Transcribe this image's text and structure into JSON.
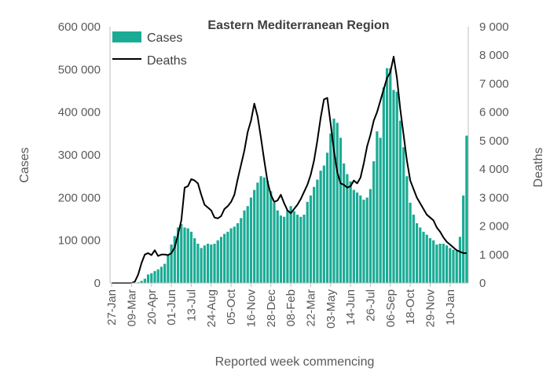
{
  "chart_data": {
    "type": "bar",
    "title": "Eastern Mediterranean Region",
    "xlabel": "Reported week commencing",
    "ylabel": "Cases",
    "y2label": "Deaths",
    "ylim": [
      0,
      600000
    ],
    "y2lim": [
      0,
      9000
    ],
    "yticks": [
      "0",
      "100 000",
      "200 000",
      "300 000",
      "400 000",
      "500 000",
      "600 000"
    ],
    "y2ticks": [
      "0",
      "1 000",
      "2 000",
      "3 000",
      "4 000",
      "5 000",
      "6 000",
      "7 000",
      "8 000",
      "9 000"
    ],
    "xtick_labels": [
      "27-Jan",
      "09-Mar",
      "20-Apr",
      "01-Jun",
      "13-Jul",
      "24-Aug",
      "05-Oct",
      "16-Nov",
      "28-Dec",
      "08-Feb",
      "22-Mar",
      "03-May",
      "14-Jun",
      "26-Jul",
      "06-Sep",
      "18-Oct",
      "29-Nov",
      "10-Jan"
    ],
    "legend": {
      "position": "top-left",
      "cases_label": "Cases",
      "deaths_label": "Deaths"
    },
    "colors": {
      "cases": "#1aab95",
      "deaths": "#000000",
      "axis": "#bfbfbf"
    },
    "series": [
      {
        "name": "Cases",
        "axis": "left",
        "type": "bar",
        "values": [
          0,
          0,
          0,
          0,
          0,
          0,
          0,
          500,
          2000,
          5000,
          10000,
          20000,
          23000,
          28000,
          32000,
          38000,
          45000,
          65000,
          90000,
          110000,
          130000,
          138000,
          130000,
          128000,
          120000,
          105000,
          92000,
          82000,
          88000,
          92000,
          90000,
          92000,
          100000,
          108000,
          115000,
          120000,
          128000,
          132000,
          140000,
          152000,
          170000,
          180000,
          200000,
          218000,
          235000,
          250000,
          247000,
          240000,
          215000,
          188000,
          170000,
          158000,
          155000,
          170000,
          180000,
          168000,
          160000,
          155000,
          160000,
          190000,
          205000,
          225000,
          242000,
          263000,
          275000,
          305000,
          350000,
          385000,
          375000,
          340000,
          280000,
          255000,
          238000,
          218000,
          212000,
          205000,
          195000,
          200000,
          220000,
          285000,
          355000,
          340000,
          458000,
          503000,
          503000,
          452000,
          448000,
          380000,
          318000,
          250000,
          188000,
          160000,
          140000,
          130000,
          120000,
          113000,
          105000,
          100000,
          90000,
          92000,
          92000,
          88000,
          82000,
          78000,
          75000,
          108000,
          205000,
          345000
        ]
      },
      {
        "name": "Deaths",
        "axis": "right",
        "type": "line",
        "values": [
          0,
          0,
          0,
          0,
          0,
          0,
          0,
          50,
          300,
          700,
          1000,
          1050,
          980,
          1150,
          950,
          1000,
          1000,
          980,
          1050,
          1250,
          1700,
          2200,
          3350,
          3400,
          3650,
          3600,
          3500,
          3100,
          2750,
          2650,
          2550,
          2300,
          2270,
          2350,
          2600,
          2700,
          2850,
          3100,
          3650,
          4150,
          4650,
          5300,
          5700,
          6300,
          5850,
          5100,
          4300,
          3550,
          3100,
          2850,
          2900,
          3100,
          2800,
          2550,
          2450,
          2600,
          2750,
          2950,
          3200,
          3450,
          3800,
          4300,
          5000,
          5800,
          6450,
          6500,
          5600,
          4650,
          3900,
          3500,
          3450,
          3350,
          3400,
          3600,
          3500,
          3700,
          4200,
          4800,
          5200,
          5700,
          6000,
          6400,
          6800,
          7200,
          7400,
          7950,
          7200,
          6100,
          5200,
          4300,
          3600,
          3300,
          3000,
          2800,
          2600,
          2400,
          2300,
          2200,
          1950,
          1800,
          1600,
          1450,
          1350,
          1250,
          1150,
          1100,
          1050,
          1050
        ]
      }
    ]
  }
}
